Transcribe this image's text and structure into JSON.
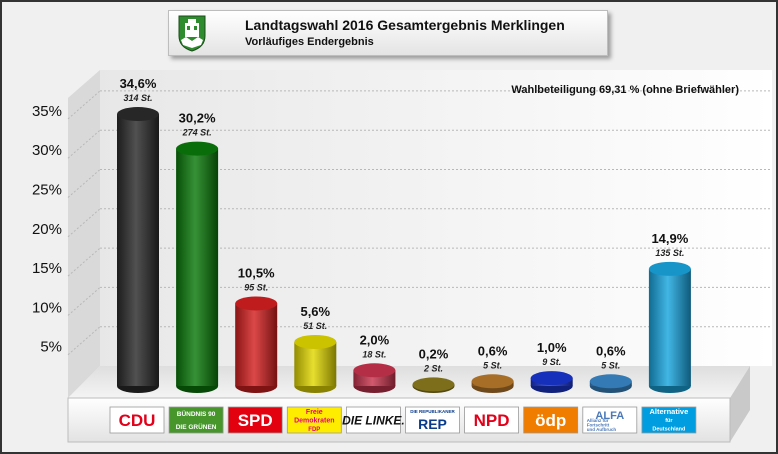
{
  "header": {
    "title": "Landtagswahl 2016 Gesamtergebnis Merklingen",
    "subtitle": "Vorläufiges Endergebnis"
  },
  "turnout_note": "Wahlbeteiligung 69,31 % (ohne Briefwähler)",
  "chart_data": {
    "type": "bar",
    "title": "Landtagswahl 2016 Gesamtergebnis Merklingen",
    "subtitle": "Vorläufiges Endergebnis",
    "xlabel": "",
    "ylabel": "",
    "ylim": [
      0,
      40
    ],
    "yticks": [
      5,
      10,
      15,
      20,
      25,
      30,
      35
    ],
    "ytick_labels": [
      "5%",
      "10%",
      "15%",
      "20%",
      "25%",
      "30%",
      "35%"
    ],
    "grid": true,
    "categories": [
      "CDU",
      "GRÜNE",
      "SPD",
      "FDP",
      "DIE LINKE",
      "REP",
      "NPD",
      "ödp",
      "ALFA",
      "AfD"
    ],
    "values": [
      34.6,
      30.2,
      10.5,
      5.6,
      2.0,
      0.2,
      0.6,
      1.0,
      0.6,
      14.9
    ],
    "value_labels": [
      "34,6%",
      "30,2%",
      "10,5%",
      "5,6%",
      "2,0%",
      "0,2%",
      "0,6%",
      "1,0%",
      "0,6%",
      "14,9%"
    ],
    "votes": [
      314,
      274,
      95,
      51,
      18,
      2,
      5,
      9,
      5,
      135
    ],
    "vote_labels": [
      "314 St.",
      "274 St.",
      "95 St.",
      "51 St.",
      "18 St.",
      "2 St.",
      "5 St.",
      "9 St.",
      "5 St.",
      "135 St."
    ],
    "colors": [
      "#2b2b2b",
      "#0a7a0a",
      "#d42020",
      "#e2d800",
      "#c8344e",
      "#8a7a1e",
      "#b97a2c",
      "#1a35d0",
      "#3a88c8",
      "#19a6df"
    ]
  },
  "logos": [
    {
      "name": "cdu-logo",
      "text": [
        "CDU"
      ],
      "bg": "#ffffff",
      "fg": "#e2001a"
    },
    {
      "name": "gruene-logo",
      "text": [
        "BÜNDNIS 90",
        "DIE GRÜNEN"
      ],
      "bg": "#46962b",
      "fg": "#ffffff"
    },
    {
      "name": "spd-logo",
      "text": [
        "SPD"
      ],
      "bg": "#e3000f",
      "fg": "#ffffff"
    },
    {
      "name": "fdp-logo",
      "text": [
        "Freie",
        "Demokraten",
        "FDP"
      ],
      "bg": "#ffed00",
      "fg": "#e5007d"
    },
    {
      "name": "linke-logo",
      "text": [
        "DIE LINKE."
      ],
      "bg": "#ffffff",
      "fg": "#111111"
    },
    {
      "name": "rep-logo",
      "text": [
        "DIE REPUBLIKANER",
        "REP"
      ],
      "bg": "#ffffff",
      "fg": "#0a3c8c"
    },
    {
      "name": "npd-logo",
      "text": [
        "NPD"
      ],
      "bg": "#ffffff",
      "fg": "#e2001a"
    },
    {
      "name": "oedp-logo",
      "text": [
        "ödp"
      ],
      "bg": "#f07d00",
      "fg": "#ffffff"
    },
    {
      "name": "alfa-logo",
      "text": [
        "ALFA",
        "Allianz für",
        "Fortschritt",
        "und Aufbruch"
      ],
      "bg": "#ffffff",
      "fg": "#4a78b8"
    },
    {
      "name": "afd-logo",
      "text": [
        "Alternative",
        "für",
        "Deutschland"
      ],
      "bg": "#009ee0",
      "fg": "#ffffff"
    }
  ]
}
